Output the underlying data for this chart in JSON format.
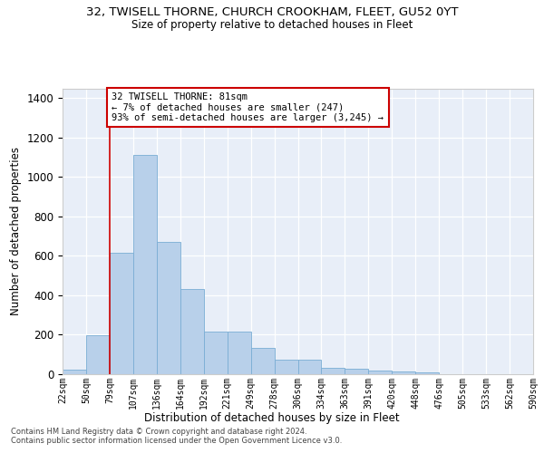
{
  "title_main": "32, TWISELL THORNE, CHURCH CROOKHAM, FLEET, GU52 0YT",
  "title_sub": "Size of property relative to detached houses in Fleet",
  "xlabel": "Distribution of detached houses by size in Fleet",
  "ylabel": "Number of detached properties",
  "bar_values": [
    20,
    195,
    615,
    1110,
    670,
    430,
    215,
    215,
    130,
    70,
    70,
    32,
    25,
    18,
    10,
    5,
    0,
    0,
    0,
    0
  ],
  "x_labels": [
    "22sqm",
    "50sqm",
    "79sqm",
    "107sqm",
    "136sqm",
    "164sqm",
    "192sqm",
    "221sqm",
    "249sqm",
    "278sqm",
    "306sqm",
    "334sqm",
    "363sqm",
    "391sqm",
    "420sqm",
    "448sqm",
    "476sqm",
    "505sqm",
    "533sqm",
    "562sqm",
    "590sqm"
  ],
  "bar_color": "#b8d0ea",
  "bar_edge_color": "#7aadd4",
  "background_color": "#e8eef8",
  "grid_color": "#ffffff",
  "vline_x": 2,
  "vline_color": "#cc0000",
  "annotation_text": "32 TWISELL THORNE: 81sqm\n← 7% of detached houses are smaller (247)\n93% of semi-detached houses are larger (3,245) →",
  "annotation_box_color": "#ffffff",
  "annotation_box_edge_color": "#cc0000",
  "ylim": [
    0,
    1450
  ],
  "yticks": [
    0,
    200,
    400,
    600,
    800,
    1000,
    1200,
    1400
  ],
  "footer_line1": "Contains HM Land Registry data © Crown copyright and database right 2024.",
  "footer_line2": "Contains public sector information licensed under the Open Government Licence v3.0."
}
